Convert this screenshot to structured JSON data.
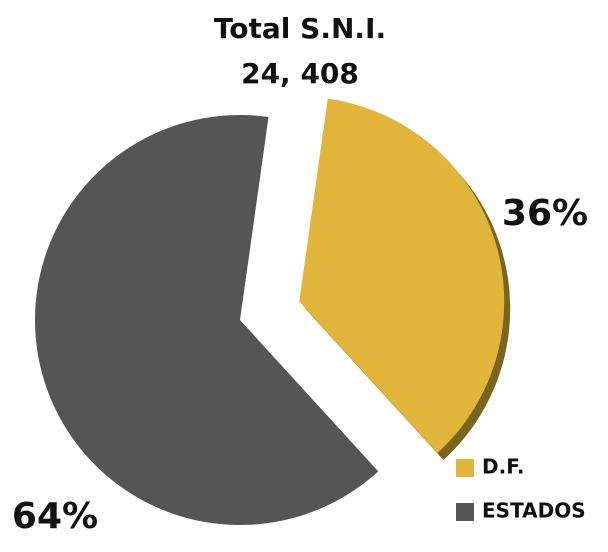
{
  "chart_data": {
    "type": "pie",
    "title": "Total S.N.I.",
    "subtitle": "24, 408",
    "categories": [
      "D.F.",
      "ESTADOS"
    ],
    "values": [
      36,
      64
    ],
    "value_labels": [
      "36%",
      "64%"
    ],
    "colors": [
      "#e0b53a",
      "#555555"
    ],
    "exploded": [
      true,
      false
    ],
    "legend": "bottom-right"
  }
}
